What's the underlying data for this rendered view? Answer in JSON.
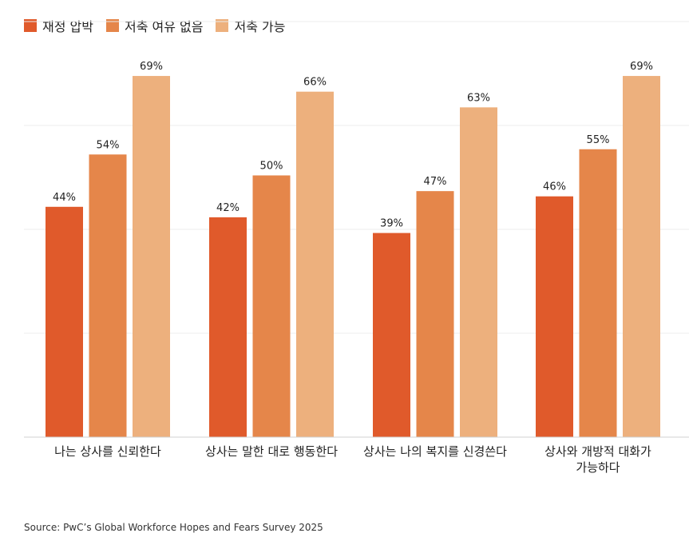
{
  "chart_data": {
    "type": "bar",
    "categories": [
      "나는 상사를 신뢰한다",
      "상사는 말한 대로 행동한다",
      "상사는 나의 복지를 신경쓴다",
      "상사와 개방적 대화가 가능하다"
    ],
    "series": [
      {
        "name": "재정 압박",
        "values": [
          44,
          42,
          39,
          46
        ],
        "color": "#e05a2b"
      },
      {
        "name": "저축 여유 없음",
        "values": [
          54,
          50,
          47,
          55
        ],
        "color": "#e5864a"
      },
      {
        "name": "저축 가능",
        "values": [
          69,
          66,
          63,
          69
        ],
        "color": "#edb07d"
      }
    ],
    "value_suffix": "%",
    "ylim": [
      0,
      70
    ],
    "grid": true,
    "legend": "top-left",
    "title": "",
    "xlabel": "",
    "ylabel": ""
  },
  "category_lines": [
    [
      "나는 상사를 신뢰한다"
    ],
    [
      "상사는 말한 대로 행동한다"
    ],
    [
      "상사는 나의 복지를 신경쓴다"
    ],
    [
      "상사와 개방적 대화가",
      "가능하다"
    ]
  ],
  "source": "Source: PwC’s Global Workforce Hopes and Fears Survey 2025"
}
